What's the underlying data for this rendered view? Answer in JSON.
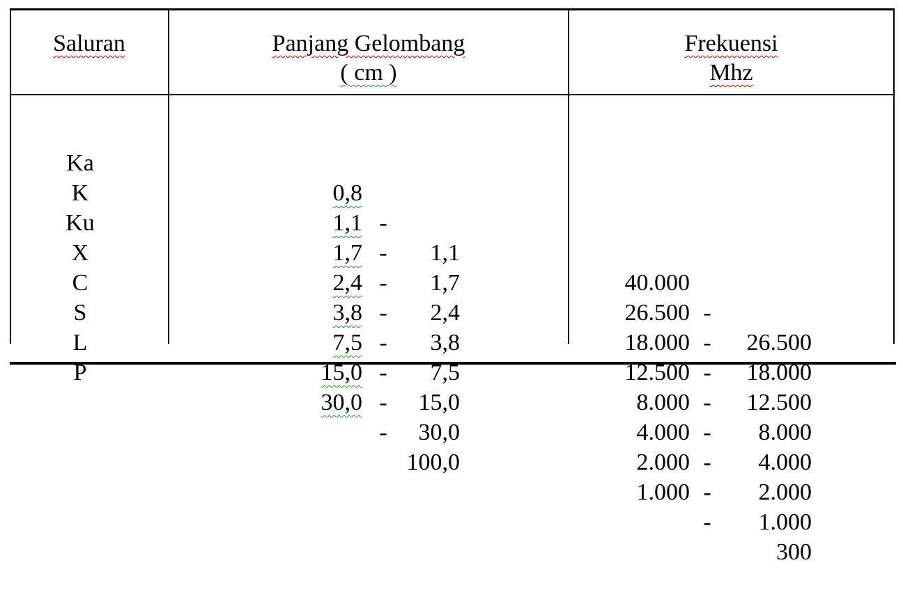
{
  "headers": {
    "col1": "Saluran",
    "col2_line1": "Panjang Gelombang",
    "col2_line2": "( cm )",
    "col3_line1": "Frekuensi",
    "col3_line2": "Mhz"
  },
  "rows": [
    {
      "saluran": "Ka",
      "wl_min": "0,8",
      "wl_max": "1,1",
      "f_a": "40.000",
      "f_b": "26.500"
    },
    {
      "saluran": "K",
      "wl_min": "1,1",
      "wl_max": "1,7",
      "f_a": "26.500",
      "f_b": "18.000"
    },
    {
      "saluran": "Ku",
      "wl_min": "1,7",
      "wl_max": "2,4",
      "f_a": "18.000",
      "f_b": "12.500"
    },
    {
      "saluran": "X",
      "wl_min": "2,4",
      "wl_max": "3,8",
      "f_a": "12.500",
      "f_b": "8.000"
    },
    {
      "saluran": "C",
      "wl_min": "3,8",
      "wl_max": "7,5",
      "f_a": "8.000",
      "f_b": "4.000"
    },
    {
      "saluran": "S",
      "wl_min": "7,5",
      "wl_max": "15,0",
      "f_a": "4.000",
      "f_b": "2.000"
    },
    {
      "saluran": "L",
      "wl_min": "15,0",
      "wl_max": "30,0",
      "f_a": "2.000",
      "f_b": "1.000"
    },
    {
      "saluran": "P",
      "wl_min": "30,0",
      "wl_max": "100,0",
      "f_a": "1.000",
      "f_b": "300"
    }
  ],
  "dash": "-"
}
